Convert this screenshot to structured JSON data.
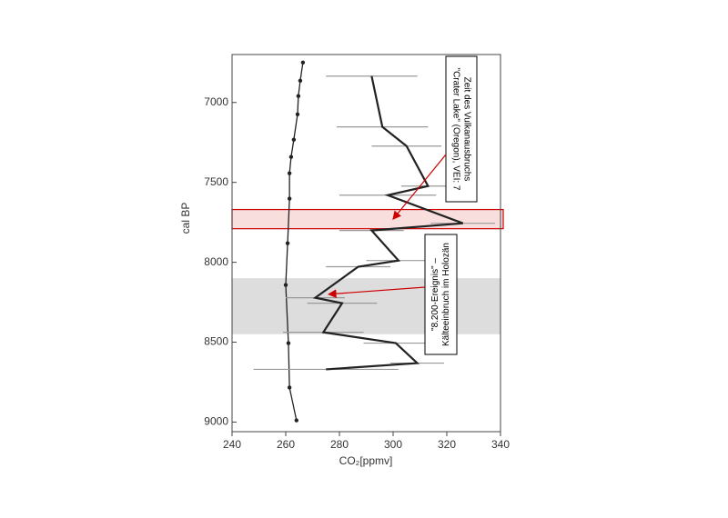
{
  "chart_data": {
    "type": "line",
    "xlabel": "CO₂[ppmv]",
    "ylabel": "cal BP",
    "xlim": [
      240,
      340
    ],
    "xticks": [
      240,
      260,
      280,
      300,
      320,
      340
    ],
    "ylim": [
      6700,
      9060
    ],
    "yticks": [
      7000,
      7500,
      8000,
      8500,
      9000
    ],
    "y_inverted": true,
    "series": [
      {
        "color": "#222222",
        "markers": true,
        "x": [
          266.4,
          265.4,
          264.7,
          264.4,
          263,
          262,
          261.4,
          261.4,
          260.7,
          260,
          261,
          261.4,
          264
        ],
        "y": [
          6750,
          6864,
          6960,
          7074,
          7233,
          7341,
          7443,
          7602,
          7881,
          8142,
          8506,
          8784,
          8989
        ]
      },
      {
        "color": "#222222",
        "markers": false,
        "errcolor": "#999999",
        "x": [
          292,
          296,
          305,
          313,
          298,
          326,
          292,
          302,
          287,
          271,
          281,
          274,
          301,
          309,
          275
        ],
        "y": [
          6835,
          7153,
          7273,
          7523,
          7580,
          7756,
          7801,
          7989,
          8028,
          8222,
          8256,
          8438,
          8506,
          8631,
          8670
        ],
        "xerr": [
          17,
          17,
          13,
          10,
          18,
          12,
          12,
          12,
          12,
          11,
          13,
          15,
          12,
          10,
          27
        ]
      }
    ],
    "bands": [
      {
        "from": 8100,
        "to": 8450,
        "color": "#dddddd"
      },
      {
        "from": 7670,
        "to": 7790,
        "color": "#f9dede",
        "stroke": "#cc0000"
      }
    ],
    "annotations": [
      {
        "lines": [
          "Zeit des Vulkanausbruchs",
          "\"Crater Lake\" (Oregon), VEI: 7"
        ],
        "arrow_to": [
          300,
          7730
        ]
      },
      {
        "lines": [
          "\"8.200-Ereignis\" –",
          "Kälteeinbruch im Holozän"
        ],
        "arrow_to": [
          276,
          8200
        ]
      }
    ]
  }
}
